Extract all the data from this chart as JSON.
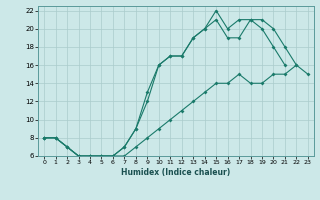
{
  "xlabel": "Humidex (Indice chaleur)",
  "bg_color": "#cce8e8",
  "grid_color": "#aacccc",
  "line_color": "#1a7a6a",
  "xlim": [
    -0.5,
    23.5
  ],
  "ylim": [
    6,
    22.5
  ],
  "xticks": [
    0,
    1,
    2,
    3,
    4,
    5,
    6,
    7,
    8,
    9,
    10,
    11,
    12,
    13,
    14,
    15,
    16,
    17,
    18,
    19,
    20,
    21,
    22,
    23
  ],
  "yticks": [
    6,
    8,
    10,
    12,
    14,
    16,
    18,
    20,
    22
  ],
  "series1_x": [
    0,
    1,
    2,
    3,
    4,
    5,
    6,
    7,
    8,
    9,
    10,
    11,
    12,
    13,
    14,
    15,
    16,
    17,
    18,
    19,
    20,
    21,
    22,
    23
  ],
  "series1_y": [
    8,
    8,
    7,
    6,
    6,
    6,
    6,
    6,
    7,
    8,
    9,
    10,
    11,
    12,
    13,
    14,
    14,
    15,
    14,
    14,
    15,
    15,
    16,
    15
  ],
  "series2_x": [
    0,
    1,
    2,
    3,
    4,
    5,
    6,
    7,
    8,
    9,
    10,
    11,
    12,
    13,
    14,
    15,
    16,
    17,
    18,
    19,
    20,
    21
  ],
  "series2_y": [
    8,
    8,
    7,
    6,
    6,
    6,
    6,
    7,
    9,
    12,
    16,
    17,
    17,
    19,
    20,
    21,
    19,
    19,
    21,
    20,
    18,
    16
  ],
  "series3_x": [
    0,
    1,
    2,
    3,
    4,
    5,
    6,
    7,
    8,
    9,
    10,
    11,
    12,
    13,
    14,
    15,
    16,
    17,
    18,
    19,
    20,
    21,
    22
  ],
  "series3_y": [
    8,
    8,
    7,
    6,
    6,
    6,
    6,
    7,
    9,
    13,
    16,
    17,
    17,
    19,
    20,
    22,
    20,
    21,
    21,
    21,
    20,
    18,
    16
  ]
}
